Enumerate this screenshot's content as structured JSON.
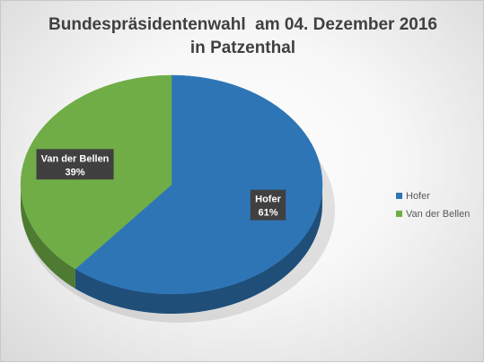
{
  "chart_data": {
    "type": "pie",
    "title_line1": "Bundespräsidentenwahl  am 04. Dezember 2016",
    "title_line2": "in Patzenthal",
    "slices": [
      {
        "label": "Hofer",
        "value": 61,
        "display": "61%",
        "color": "#2e75b6",
        "side_color": "#1f4e79"
      },
      {
        "label": "Van der Bellen",
        "value": 39,
        "display": "39%",
        "color": "#70ad47",
        "side_color": "#4e7a31"
      }
    ],
    "legend": {
      "position": "right",
      "items": [
        "Hofer",
        "Van der Bellen"
      ]
    },
    "data_label_bg": "#404040",
    "data_label_color": "#ffffff"
  }
}
